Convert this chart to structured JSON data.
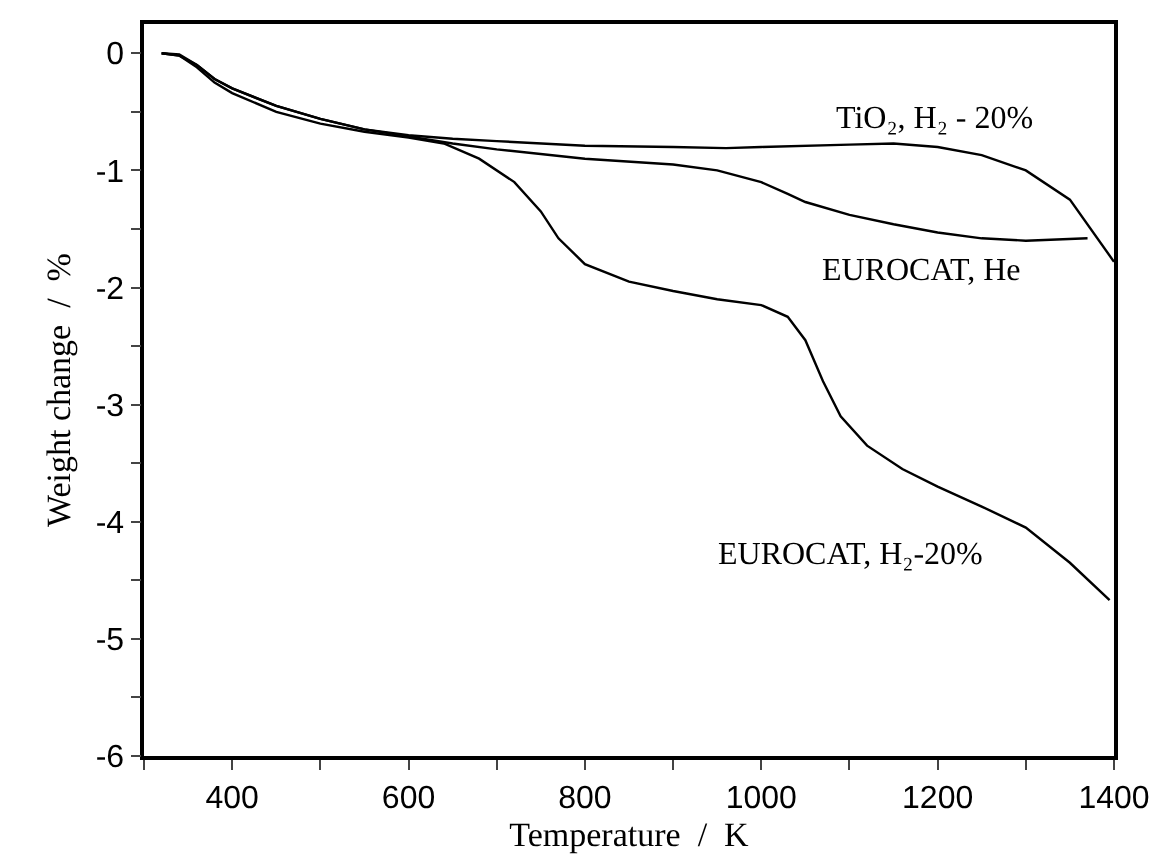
{
  "chart_data": {
    "type": "line",
    "xlabel": "Temperature  /  K",
    "ylabel": "Weight change  /  %",
    "xlim": [
      300,
      1400
    ],
    "ylim": [
      -6,
      0.25
    ],
    "xticks": [
      {
        "value": 300,
        "label": null
      },
      400,
      {
        "value": 500,
        "label": null
      },
      600,
      {
        "value": 700,
        "label": null
      },
      800,
      {
        "value": 900,
        "label": null
      },
      1000,
      {
        "value": 1100,
        "label": null
      },
      1200,
      {
        "value": 1300,
        "label": null
      },
      1400
    ],
    "yticks": [
      -6,
      {
        "value": -5.5,
        "label": null
      },
      -5,
      {
        "value": -4.5,
        "label": null
      },
      -4,
      {
        "value": -3.5,
        "label": null
      },
      -3,
      {
        "value": -2.5,
        "label": null
      },
      -2,
      {
        "value": -1.5,
        "label": null
      },
      -1,
      {
        "value": -0.5,
        "label": null
      },
      0
    ],
    "grid": false,
    "legend": false,
    "marker": "none",
    "line_style": "solid",
    "series": [
      {
        "name": "EUROCAT, H₂-20%",
        "color": "#000000",
        "x": [
          320,
          340,
          360,
          380,
          400,
          450,
          500,
          550,
          600,
          640,
          680,
          720,
          750,
          770,
          800,
          850,
          900,
          950,
          1000,
          1030,
          1050,
          1070,
          1090,
          1120,
          1160,
          1200,
          1250,
          1300,
          1350,
          1395
        ],
        "values": [
          0,
          -0.02,
          -0.12,
          -0.25,
          -0.34,
          -0.5,
          -0.6,
          -0.67,
          -0.72,
          -0.77,
          -0.9,
          -1.1,
          -1.35,
          -1.58,
          -1.8,
          -1.95,
          -2.03,
          -2.1,
          -2.15,
          -2.25,
          -2.45,
          -2.8,
          -3.1,
          -3.35,
          -3.55,
          -3.7,
          -3.87,
          -4.05,
          -4.35,
          -4.67
        ]
      },
      {
        "name": "EUROCAT, He",
        "color": "#000000",
        "x": [
          320,
          340,
          360,
          380,
          400,
          450,
          500,
          550,
          600,
          650,
          700,
          800,
          900,
          950,
          1000,
          1030,
          1050,
          1100,
          1150,
          1200,
          1250,
          1300,
          1370
        ],
        "values": [
          0,
          -0.02,
          -0.1,
          -0.22,
          -0.3,
          -0.45,
          -0.56,
          -0.65,
          -0.71,
          -0.77,
          -0.82,
          -0.9,
          -0.95,
          -1.0,
          -1.1,
          -1.2,
          -1.27,
          -1.38,
          -1.46,
          -1.53,
          -1.58,
          -1.6,
          -1.58
        ]
      },
      {
        "name": "TiO₂, H₂ - 20%",
        "color": "#000000",
        "x": [
          320,
          340,
          360,
          380,
          400,
          450,
          500,
          550,
          600,
          650,
          700,
          800,
          900,
          960,
          1000,
          1100,
          1150,
          1200,
          1250,
          1300,
          1350,
          1400
        ],
        "values": [
          0,
          -0.01,
          -0.1,
          -0.22,
          -0.3,
          -0.45,
          -0.56,
          -0.65,
          -0.7,
          -0.73,
          -0.75,
          -0.79,
          -0.8,
          -0.81,
          -0.8,
          -0.78,
          -0.77,
          -0.8,
          -0.87,
          -1.0,
          -1.25,
          -1.78
        ]
      }
    ]
  }
}
